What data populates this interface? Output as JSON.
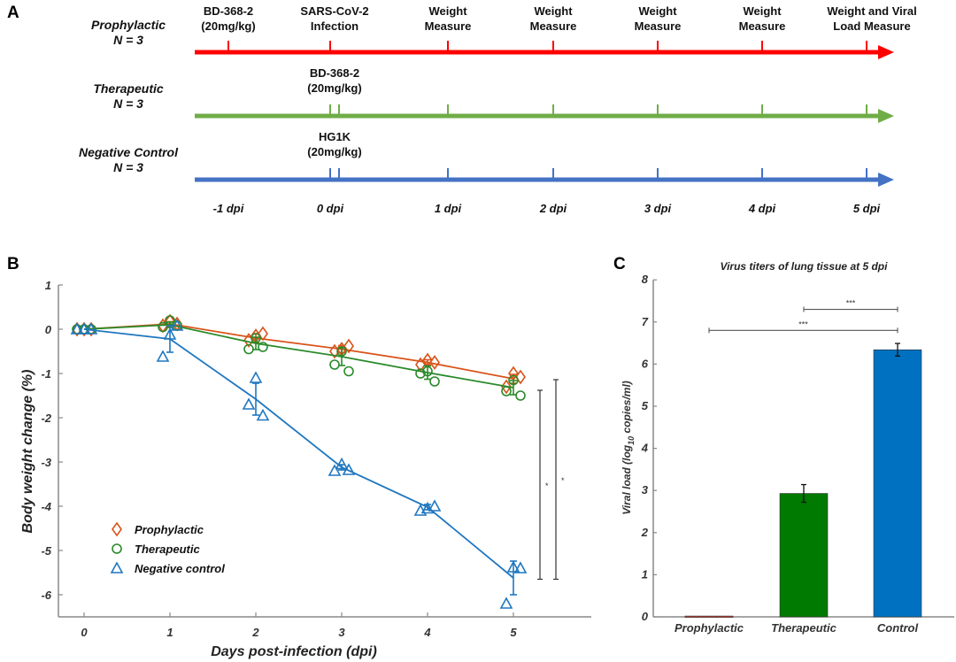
{
  "panel_labels": {
    "a": "A",
    "b": "B",
    "c": "C"
  },
  "timeline": {
    "groups": [
      {
        "name": "Prophylactic",
        "n": "N = 3",
        "color": "#ff0000",
        "annotation": null,
        "ticks": [
          -1,
          0,
          1,
          2,
          3,
          4,
          5
        ],
        "double_tick_at_zero": false
      },
      {
        "name": "Therapeutic",
        "n": "N = 3",
        "color": "#70ad47",
        "annotation": [
          "BD-368-2",
          "(20mg/kg)"
        ],
        "ticks": [
          0,
          1,
          2,
          3,
          4,
          5
        ],
        "double_tick_at_zero": true
      },
      {
        "name": "Negative Control",
        "n": "N = 3",
        "color": "#4472c4",
        "annotation": [
          "HG1K",
          "(20mg/kg)"
        ],
        "ticks": [
          0,
          1,
          2,
          3,
          4,
          5
        ],
        "double_tick_at_zero": true
      }
    ],
    "events": [
      {
        "day": -1,
        "lines": [
          "BD-368-2",
          "(20mg/kg)"
        ]
      },
      {
        "day": 0,
        "lines": [
          "SARS-CoV-2",
          "Infection"
        ]
      },
      {
        "day": 1,
        "lines": [
          "Weight",
          "Measure"
        ]
      },
      {
        "day": 2,
        "lines": [
          "Weight",
          "Measure"
        ]
      },
      {
        "day": 3,
        "lines": [
          "Weight",
          "Measure"
        ]
      },
      {
        "day": 4,
        "lines": [
          "Weight",
          "Measure"
        ]
      },
      {
        "day": 5,
        "lines": [
          "Weight and Viral",
          "Load Measure"
        ]
      }
    ],
    "day_labels": [
      "-1 dpi",
      "0 dpi",
      "1 dpi",
      "2 dpi",
      "3 dpi",
      "4 dpi",
      "5 dpi"
    ]
  },
  "chart_data": [
    {
      "type": "line",
      "panel": "B",
      "title": "",
      "xlabel": "Days post-infection (dpi)",
      "ylabel": "Body weight change (%)",
      "xlim": [
        -0.3,
        5.8
      ],
      "ylim": [
        -6.5,
        1
      ],
      "xticks": [
        0,
        1,
        2,
        3,
        4,
        5
      ],
      "yticks": [
        1,
        0,
        -1,
        -2,
        -3,
        -4,
        -5,
        -6
      ],
      "legend_position": "bottom-left",
      "grid": false,
      "series": [
        {
          "name": "Prophylactic",
          "marker": "diamond",
          "color": "#d95319",
          "x": [
            0,
            1,
            2,
            3,
            4,
            5
          ],
          "mean": [
            0,
            0.12,
            -0.2,
            -0.45,
            -0.75,
            -1.12
          ],
          "err": [
            0,
            0.05,
            0.1,
            0.08,
            0.06,
            0.1
          ],
          "points": [
            [
              0,
              0.0,
              0.0,
              0.0
            ],
            [
              1,
              0.08,
              0.18,
              0.12
            ],
            [
              2,
              -0.25,
              -0.15,
              -0.1
            ],
            [
              3,
              -0.5,
              -0.45,
              -0.38
            ],
            [
              4,
              -0.8,
              -0.7,
              -0.75
            ],
            [
              5,
              -1.3,
              -1.0,
              -1.08
            ]
          ]
        },
        {
          "name": "Therapeutic",
          "marker": "circle",
          "color": "#2a8a2a",
          "x": [
            0,
            1,
            2,
            3,
            4,
            5
          ],
          "mean": [
            0,
            0.1,
            -0.32,
            -0.62,
            -0.98,
            -1.32
          ],
          "err": [
            0,
            0.06,
            0.14,
            0.2,
            0.15,
            0.16
          ],
          "points": [
            [
              0,
              0.0,
              0.0,
              0.0
            ],
            [
              1,
              0.05,
              0.2,
              0.08
            ],
            [
              2,
              -0.45,
              -0.2,
              -0.4
            ],
            [
              3,
              -0.8,
              -0.5,
              -0.95
            ],
            [
              4,
              -1.0,
              -0.95,
              -1.18
            ],
            [
              5,
              -1.4,
              -1.15,
              -1.5
            ]
          ]
        },
        {
          "name": "Negative control",
          "marker": "triangle",
          "color": "#1f77c0",
          "x": [
            0,
            1,
            2,
            3,
            4,
            5
          ],
          "mean": [
            0,
            -0.22,
            -1.58,
            -3.12,
            -4.02,
            -5.62
          ],
          "err": [
            0,
            0.3,
            0.36,
            0.06,
            0.06,
            0.38
          ],
          "points": [
            [
              0,
              0.0,
              0.0,
              0.0
            ],
            [
              1,
              -0.62,
              -0.12,
              0.08
            ],
            [
              2,
              -1.7,
              -1.1,
              -1.95
            ],
            [
              3,
              -3.2,
              -3.05,
              -3.18
            ],
            [
              4,
              -4.1,
              -4.05,
              -4.0
            ],
            [
              5,
              -6.2,
              -5.38,
              -5.4
            ]
          ]
        }
      ],
      "significance": [
        {
          "label": "*",
          "from": -1.38,
          "to": -5.65
        },
        {
          "label": "*",
          "from": -1.14,
          "to": -5.65
        }
      ]
    },
    {
      "type": "bar",
      "panel": "C",
      "title": "Virus titers of lung tissue at 5 dpi",
      "xlabel": "",
      "ylabel": "Viral load (log10 copies/ml)",
      "ylabel_parts": [
        "Viral load (log",
        "10",
        " copies/ml)"
      ],
      "categories": [
        "Prophylactic",
        "Therapeutic",
        "Control"
      ],
      "values": [
        0.02,
        2.93,
        6.34
      ],
      "err": [
        0.02,
        0.21,
        0.15
      ],
      "colors": [
        "#c0392b",
        "#007a00",
        "#0070c0"
      ],
      "ylim": [
        0,
        8
      ],
      "yticks": [
        0,
        1,
        2,
        3,
        4,
        5,
        6,
        7,
        8
      ],
      "grid": false,
      "significance": [
        {
          "label": "***",
          "from": "Therapeutic",
          "to": "Control",
          "y": 7.3
        },
        {
          "label": "***",
          "from": "Prophylactic",
          "to": "Control",
          "y": 6.8
        }
      ]
    }
  ]
}
